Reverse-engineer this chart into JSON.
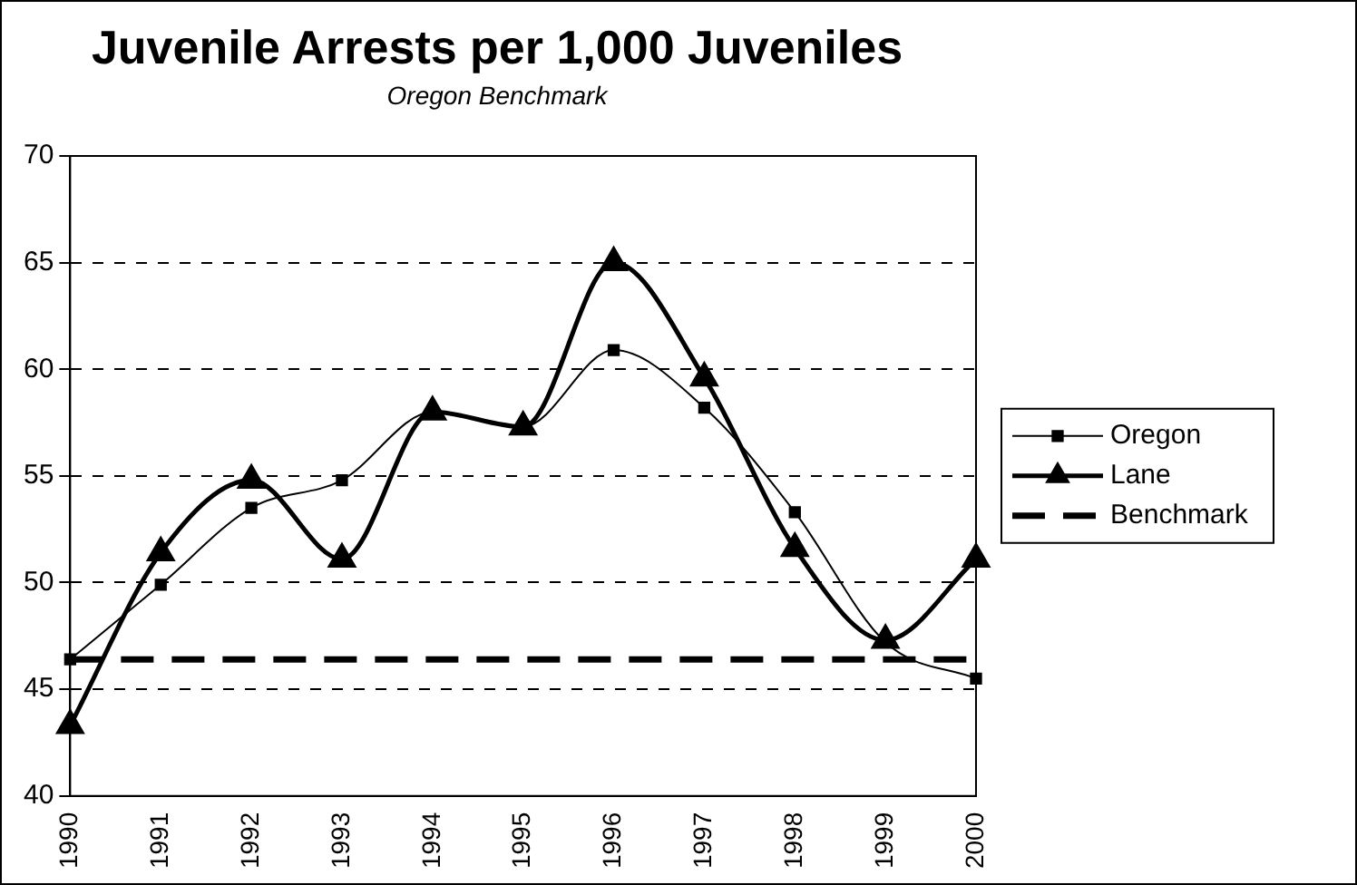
{
  "chart_data": {
    "type": "line",
    "title": "Juvenile Arrests per 1,000 Juveniles",
    "subtitle": "Oregon Benchmark",
    "categories": [
      "1990",
      "1991",
      "1992",
      "1993",
      "1994",
      "1995",
      "1996",
      "1997",
      "1998",
      "1999",
      "2000"
    ],
    "series": [
      {
        "name": "Oregon",
        "color": "#000000",
        "marker": "square",
        "line_style": "solid",
        "values": [
          46.4,
          49.9,
          53.5,
          54.8,
          58.0,
          57.3,
          60.9,
          58.2,
          53.3,
          47.2,
          45.5
        ]
      },
      {
        "name": "Lane",
        "color": "#000000",
        "marker": "triangle",
        "line_style": "solid",
        "values": [
          43.3,
          51.4,
          54.8,
          51.1,
          58.0,
          57.3,
          65.0,
          59.6,
          51.6,
          47.3,
          51.1
        ]
      },
      {
        "name": "Benchmark",
        "color": "#000000",
        "marker": "none",
        "line_style": "dashed",
        "values": [
          46.4,
          46.4,
          46.4,
          46.4,
          46.4,
          46.4,
          46.4,
          46.4,
          46.4,
          46.4,
          46.4
        ]
      }
    ],
    "ylim": [
      40,
      70
    ],
    "yticks": [
      40,
      45,
      50,
      55,
      60,
      65,
      70
    ],
    "grid": "y",
    "legend": "right"
  }
}
